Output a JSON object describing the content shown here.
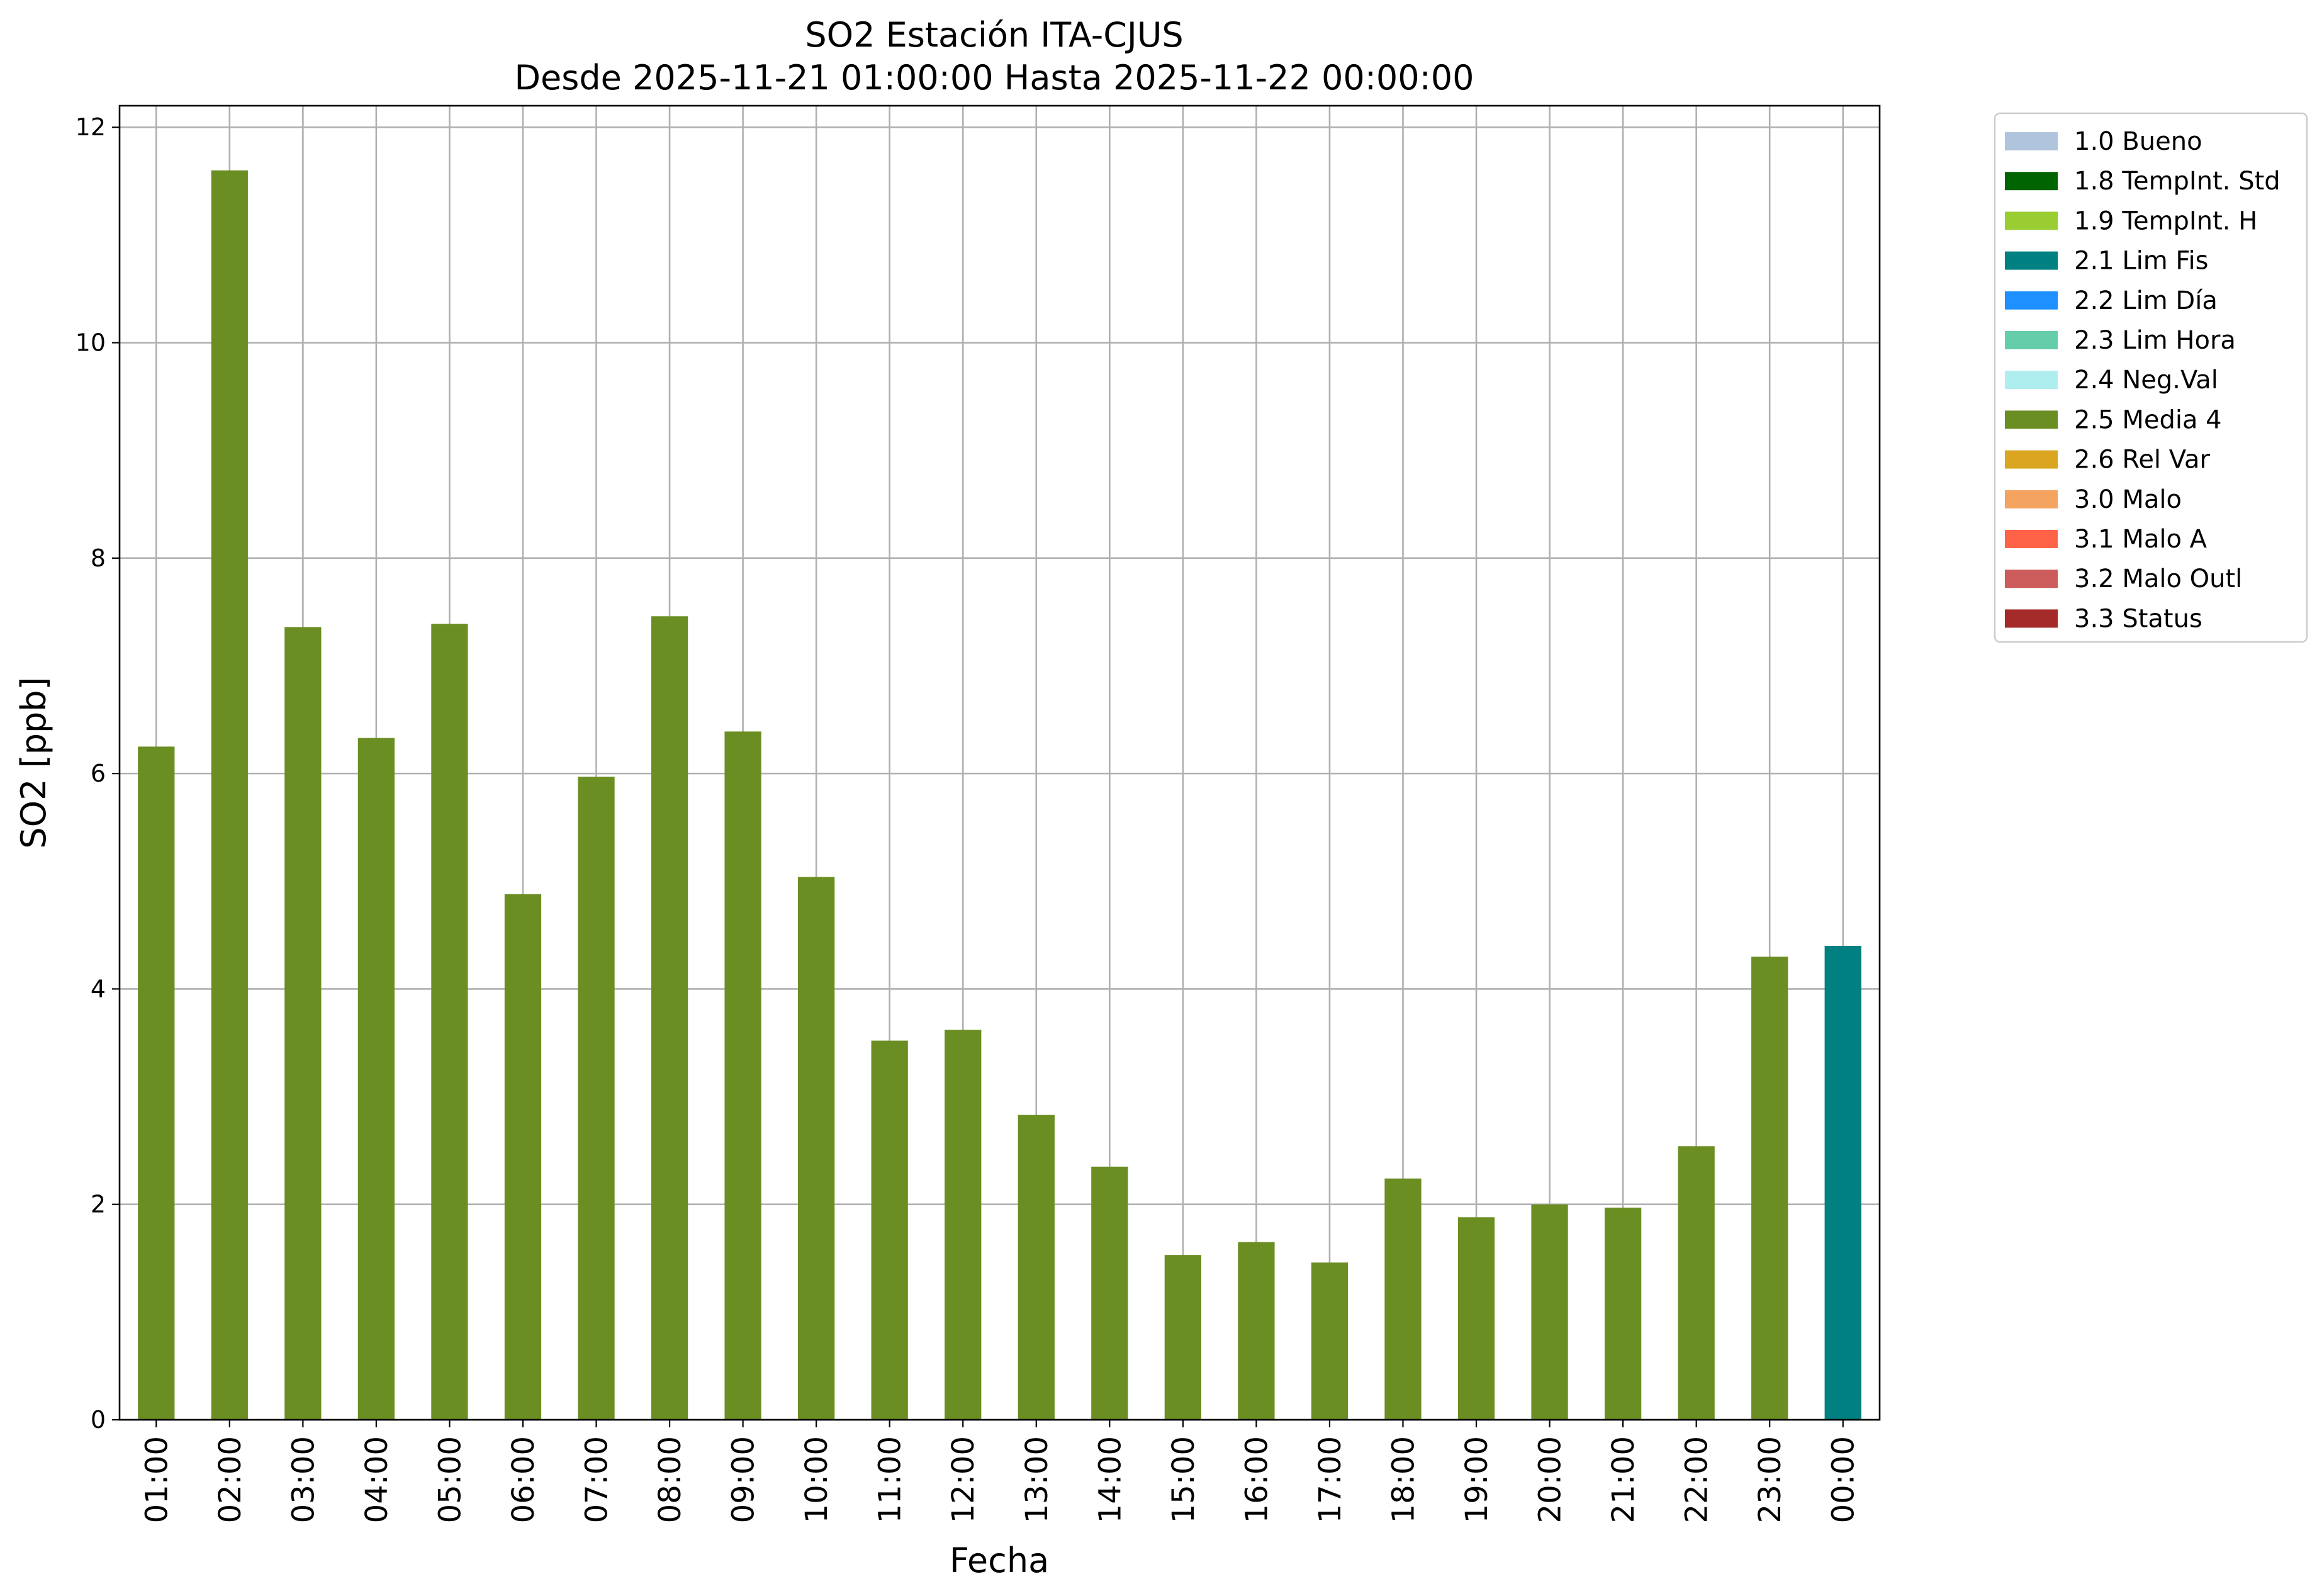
{
  "chart_data": {
    "type": "bar",
    "title": "SO2 Estación ITA-CJUS",
    "subtitle": "Desde 2025-11-21 01:00:00 Hasta 2025-11-22 00:00:00",
    "xlabel": "Fecha",
    "ylabel": "SO2 [ppb]",
    "ylim": [
      0,
      12.2
    ],
    "yticks": [
      0,
      2,
      4,
      6,
      8,
      10,
      12
    ],
    "ytick_labels": [
      "0",
      "2",
      "4",
      "6",
      "8",
      "10",
      "12"
    ],
    "grid": true,
    "legend_position": "outside-right",
    "categories": [
      "01:00",
      "02:00",
      "03:00",
      "04:00",
      "05:00",
      "06:00",
      "07:00",
      "08:00",
      "09:00",
      "10:00",
      "11:00",
      "12:00",
      "13:00",
      "14:00",
      "15:00",
      "16:00",
      "17:00",
      "18:00",
      "19:00",
      "20:00",
      "21:00",
      "22:00",
      "23:00",
      "00:00"
    ],
    "values": [
      6.25,
      11.6,
      7.36,
      6.33,
      7.39,
      4.88,
      5.97,
      7.46,
      6.39,
      5.04,
      3.52,
      3.62,
      2.83,
      2.35,
      1.53,
      1.65,
      1.46,
      2.24,
      1.88,
      2.0,
      1.97,
      2.54,
      4.3,
      4.4
    ],
    "flags": [
      "2.5 Media 4",
      "2.5 Media 4",
      "2.5 Media 4",
      "2.5 Media 4",
      "2.5 Media 4",
      "2.5 Media 4",
      "2.5 Media 4",
      "2.5 Media 4",
      "2.5 Media 4",
      "2.5 Media 4",
      "2.5 Media 4",
      "2.5 Media 4",
      "2.5 Media 4",
      "2.5 Media 4",
      "2.5 Media 4",
      "2.5 Media 4",
      "2.5 Media 4",
      "2.5 Media 4",
      "2.5 Media 4",
      "2.5 Media 4",
      "2.5 Media 4",
      "2.5 Media 4",
      "2.5 Media 4",
      "2.1 Lim Fis"
    ],
    "legend": [
      {
        "label": "1.0 Bueno",
        "color": "#b0c4de"
      },
      {
        "label": "1.8 TempInt. Std",
        "color": "#006400"
      },
      {
        "label": "1.9 TempInt. H",
        "color": "#9acd32"
      },
      {
        "label": "2.1 Lim Fis",
        "color": "#008080"
      },
      {
        "label": "2.2 Lim Día",
        "color": "#1e90ff"
      },
      {
        "label": "2.3 Lim Hora",
        "color": "#66cdaa"
      },
      {
        "label": "2.4 Neg.Val",
        "color": "#afeeee"
      },
      {
        "label": "2.5 Media 4",
        "color": "#6b8e23"
      },
      {
        "label": "2.6 Rel Var",
        "color": "#daa520"
      },
      {
        "label": "3.0 Malo",
        "color": "#f4a460"
      },
      {
        "label": "3.1 Malo A",
        "color": "#ff6347"
      },
      {
        "label": "3.2 Malo Outl",
        "color": "#cd5c5c"
      },
      {
        "label": "3.3 Status",
        "color": "#a52a2a"
      }
    ]
  }
}
